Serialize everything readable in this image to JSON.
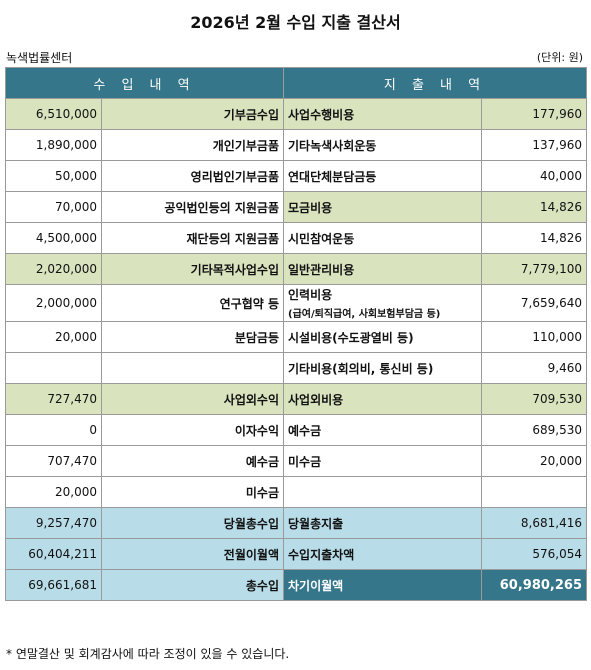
{
  "title": "2026년 2월 수입 지출 결산서",
  "org": "녹색법률센터",
  "unit": "(단위: 원)",
  "headers": {
    "income": "수 입 내 역",
    "expense": "지 출 내 역"
  },
  "rows": [
    {
      "style": "green",
      "in_amount": "6,510,000",
      "in_label": "기부금수입",
      "ex_label": "사업수행비용",
      "ex_sub": "",
      "ex_amount": "177,960"
    },
    {
      "style": "white",
      "in_amount": "1,890,000",
      "in_label": "개인기부금품",
      "ex_label": "기타녹색사회운동",
      "ex_sub": "",
      "ex_amount": "137,960"
    },
    {
      "style": "white",
      "in_amount": "50,000",
      "in_label": "영리법인기부금품",
      "ex_label": "연대단체분담금등",
      "ex_sub": "",
      "ex_amount": "40,000"
    },
    {
      "style": "white",
      "in_amount": "70,000",
      "in_label": "공익법인등의 지원금품",
      "ex_label": "모금비용",
      "ex_sub": "",
      "ex_amount": "14,826",
      "ex_green": true
    },
    {
      "style": "white",
      "in_amount": "4,500,000",
      "in_label": "재단등의 지원금품",
      "ex_label": "시민참여운동",
      "ex_sub": "",
      "ex_amount": "14,826"
    },
    {
      "style": "green",
      "in_amount": "2,020,000",
      "in_label": "기타목적사업수입",
      "ex_label": "일반관리비용",
      "ex_sub": "",
      "ex_amount": "7,779,100"
    },
    {
      "style": "white tall",
      "in_amount": "2,000,000",
      "in_label": "연구협약 등",
      "ex_label": "인력비용",
      "ex_sub": "(급여/퇴직급여, 사회보험부담금 등)",
      "ex_amount": "7,659,640"
    },
    {
      "style": "white",
      "in_amount": "20,000",
      "in_label": "분담금등",
      "ex_label": "시설비용(수도광열비 등)",
      "ex_sub": "",
      "ex_amount": "110,000"
    },
    {
      "style": "white",
      "in_amount": "",
      "in_label": "",
      "ex_label": "기타비용(회의비, 통신비 등)",
      "ex_sub": "",
      "ex_amount": "9,460"
    },
    {
      "style": "green",
      "in_amount": "727,470",
      "in_label": "사업외수익",
      "ex_label": "사업외비용",
      "ex_sub": "",
      "ex_amount": "709,530"
    },
    {
      "style": "white",
      "in_amount": "0",
      "in_label": "이자수익",
      "ex_label": "예수금",
      "ex_sub": "",
      "ex_amount": "689,530"
    },
    {
      "style": "white",
      "in_amount": "707,470",
      "in_label": "예수금",
      "ex_label": "미수금",
      "ex_sub": "",
      "ex_amount": "20,000"
    },
    {
      "style": "white",
      "in_amount": "20,000",
      "in_label": "미수금",
      "ex_label": "",
      "ex_sub": "",
      "ex_amount": ""
    },
    {
      "style": "blue",
      "in_amount": "9,257,470",
      "in_label": "당월총수입",
      "ex_label": "당월총지출",
      "ex_sub": "",
      "ex_amount": "8,681,416"
    },
    {
      "style": "blue",
      "in_amount": "60,404,211",
      "in_label": "전월이월액",
      "ex_label": "수입지출차액",
      "ex_sub": "",
      "ex_amount": "576,054"
    },
    {
      "style": "blue final",
      "in_amount": "69,661,681",
      "in_label": "총수입",
      "ex_label": "차기이월액",
      "ex_sub": "",
      "ex_amount": "60,980,265"
    }
  ],
  "footnote": "* 연말결산 및 회계감사에 따라 조정이 있을 수 있습니다.",
  "colors": {
    "header": "#35768a",
    "green": "#d9e4bf",
    "blue": "#b9dde8"
  }
}
